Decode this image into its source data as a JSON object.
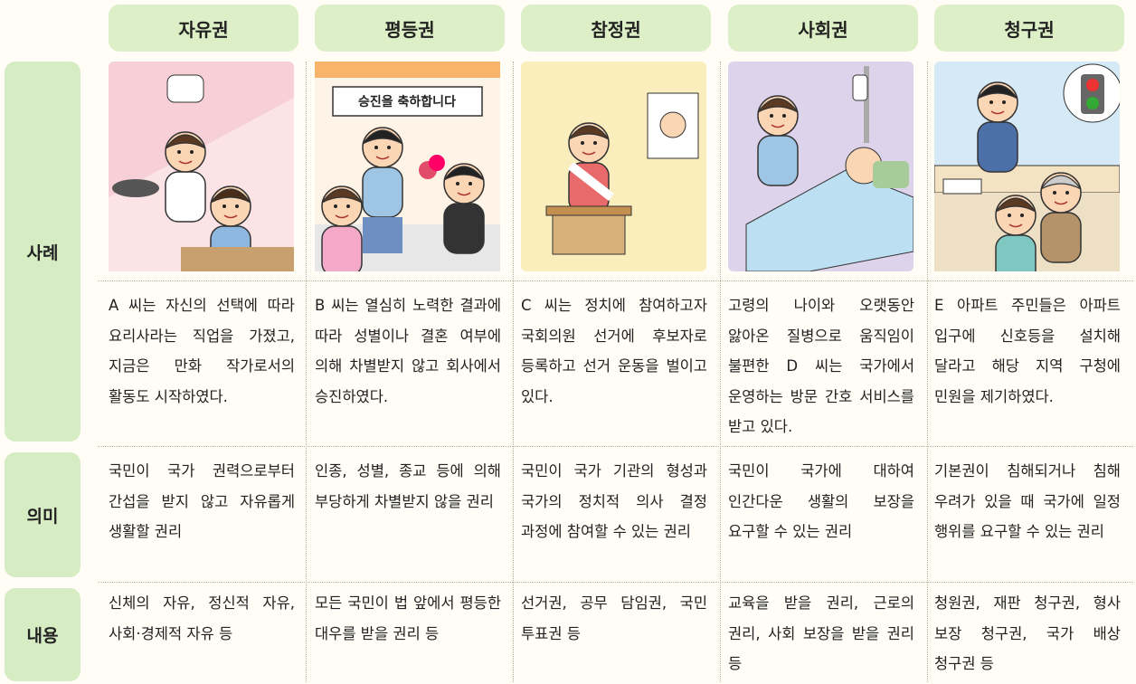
{
  "columns": [
    "자유권",
    "평등권",
    "참정권",
    "사회권",
    "청구권"
  ],
  "rows": [
    {
      "label": "사례",
      "cells": [
        "A 씨는 자신의 선택에 따라 요리사라는 직업을 가졌고, 지금은 만화 작가로서의 활동도 시작하였다.",
        "B 씨는 열심히 노력한 결과에 따라 성별이나 결혼 여부에 의해 차별받지 않고 회사에서 승진하였다.",
        "C 씨는 정치에 참여하고자 국회의원 선거에 후보자로 등록하고 선거 운동을 벌이고 있다.",
        "고령의 나이와 오랫동안 앓아온 질병으로 움직임이 불편한 D 씨는 국가에서 운영하는 방문 간호 서비스를 받고 있다.",
        "E 아파트 주민들은 아파트 입구에 신호등을 설치해 달라고 해당 지역 구청에 민원을 제기하였다."
      ]
    },
    {
      "label": "의미",
      "cells": [
        "국민이 국가 권력으로부터 간섭을 받지 않고 자유롭게 생활할 권리",
        "인종, 성별, 종교 등에 의해 부당하게 차별받지 않을 권리",
        "국민이 국가 기관의 형성과 국가의 정치적 의사 결정 과정에 참여할 수 있는 권리",
        "국민이 국가에 대하여 인간다운 생활의 보장을 요구할 수 있는 권리",
        "기본권이 침해되거나 침해 우려가 있을 때 국가에 일정 행위를 요구할 수 있는 권리"
      ]
    },
    {
      "label": "내용",
      "cells": [
        "신체의 자유, 정신적 자유, 사회·경제적 자유 등",
        "모든 국민이 법 앞에서 평등한 대우를 받을 권리 등",
        "선거권, 공무 담임권, 국민 투표권 등",
        "교육을 받을 권리, 근로의 권리, 사회 보장을 받을 권리 등",
        "청원권, 재판 청구권, 형사 보장 청구권, 국가 배상 청구권 등"
      ]
    }
  ],
  "illustration_texts": {
    "promotion_sign": "승진을 축하합니다"
  }
}
